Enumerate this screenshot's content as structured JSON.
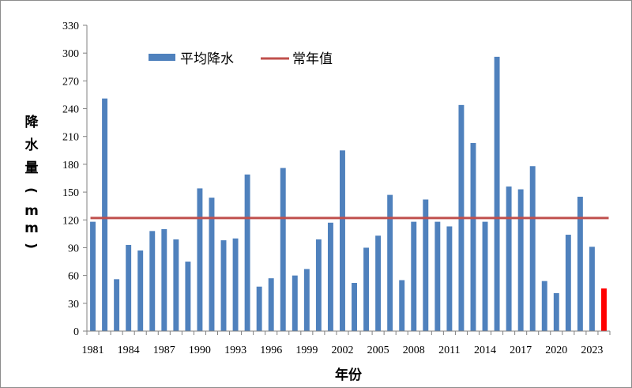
{
  "chart_data": {
    "type": "bar",
    "ylabel_chars": [
      "降",
      "水",
      "量",
      "(",
      "m",
      "m",
      ")"
    ],
    "xlabel": "年份",
    "ylim": [
      0,
      330
    ],
    "yticks": [
      0,
      30,
      60,
      90,
      120,
      150,
      180,
      210,
      240,
      270,
      300,
      330
    ],
    "x_tick_labels": [
      "1981",
      "1984",
      "1987",
      "1990",
      "1993",
      "1996",
      "1999",
      "2002",
      "2005",
      "2008",
      "2011",
      "2014",
      "2017",
      "2020",
      "2023"
    ],
    "years": [
      1981,
      1982,
      1983,
      1984,
      1985,
      1986,
      1987,
      1988,
      1989,
      1990,
      1991,
      1992,
      1993,
      1994,
      1995,
      1996,
      1997,
      1998,
      1999,
      2000,
      2001,
      2002,
      2003,
      2004,
      2005,
      2006,
      2007,
      2008,
      2009,
      2010,
      2011,
      2012,
      2013,
      2014,
      2015,
      2016,
      2017,
      2018,
      2019,
      2020,
      2021,
      2022,
      2023,
      2024
    ],
    "series": [
      {
        "name": "平均降水",
        "color": "#4f81bd",
        "values": [
          118,
          251,
          56,
          93,
          87,
          108,
          110,
          99,
          75,
          154,
          144,
          98,
          100,
          169,
          48,
          57,
          176,
          60,
          67,
          99,
          117,
          195,
          52,
          90,
          103,
          147,
          55,
          118,
          142,
          118,
          113,
          244,
          203,
          118,
          296,
          156,
          153,
          178,
          54,
          41,
          104,
          145,
          91,
          46
        ]
      },
      {
        "name": "常年值",
        "color": "#c0504d",
        "type": "line",
        "value": 122
      }
    ],
    "highlight": {
      "year": 2024,
      "color": "#ff0000"
    },
    "grid": false,
    "legend_position": "top-left"
  }
}
